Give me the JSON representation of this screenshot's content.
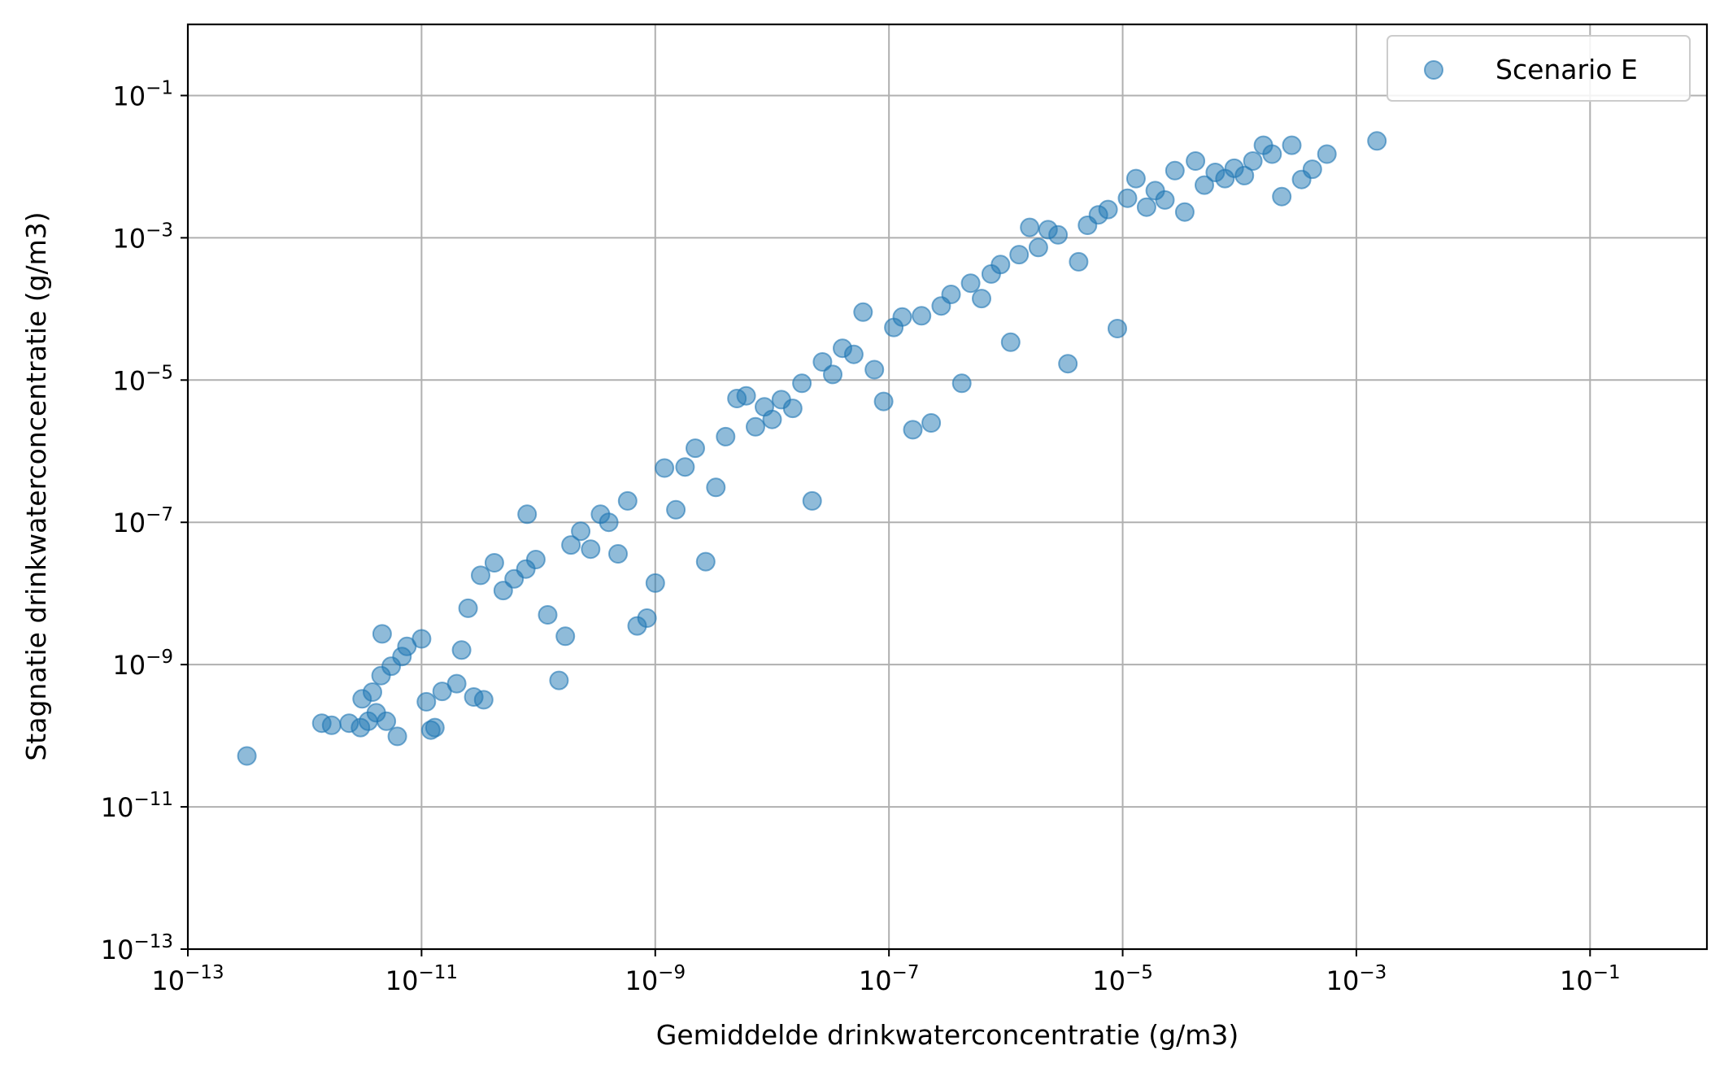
{
  "chart_data": {
    "type": "scatter",
    "title": "",
    "xlabel": "Gemiddelde drinkwaterconcentratie (g/m3)",
    "ylabel": "Stagnatie drinkwaterconcentratie (g/m3)",
    "x_scale": "log",
    "y_scale": "log",
    "xlim": [
      1e-13,
      1
    ],
    "ylim": [
      1e-13,
      1
    ],
    "x_ticks": [
      {
        "base": "10",
        "exp": "−13",
        "value": 1e-13
      },
      {
        "base": "10",
        "exp": "−11",
        "value": 1e-11
      },
      {
        "base": "10",
        "exp": "−9",
        "value": 1e-09
      },
      {
        "base": "10",
        "exp": "−7",
        "value": 1e-07
      },
      {
        "base": "10",
        "exp": "−5",
        "value": 1e-05
      },
      {
        "base": "10",
        "exp": "−3",
        "value": 0.001
      },
      {
        "base": "10",
        "exp": "−1",
        "value": 0.1
      }
    ],
    "y_ticks": [
      {
        "base": "10",
        "exp": "−13",
        "value": 1e-13
      },
      {
        "base": "10",
        "exp": "−11",
        "value": 1e-11
      },
      {
        "base": "10",
        "exp": "−9",
        "value": 1e-09
      },
      {
        "base": "10",
        "exp": "−7",
        "value": 1e-07
      },
      {
        "base": "10",
        "exp": "−5",
        "value": 1e-05
      },
      {
        "base": "10",
        "exp": "−3",
        "value": 0.001
      },
      {
        "base": "10",
        "exp": "−1",
        "value": 0.1
      }
    ],
    "grid": true,
    "legend_position": "top-right",
    "series": [
      {
        "name": "Scenario E",
        "color": "#1f77b4",
        "marker": "circle",
        "alpha": 0.5,
        "points": [
          [
            3.2e-13,
            5.2e-11
          ],
          [
            1.4e-12,
            1.5e-10
          ],
          [
            1.7e-12,
            1.4e-10
          ],
          [
            2.4e-12,
            1.5e-10
          ],
          [
            3e-12,
            1.3e-10
          ],
          [
            3.5e-12,
            1.6e-10
          ],
          [
            4.1e-12,
            2.1e-10
          ],
          [
            3.1e-12,
            3.3e-10
          ],
          [
            3.8e-12,
            4.1e-10
          ],
          [
            5e-12,
            1.6e-10
          ],
          [
            6.2e-12,
            9.8e-11
          ],
          [
            4.5e-12,
            7e-10
          ],
          [
            4.6e-12,
            2.7e-09
          ],
          [
            5.5e-12,
            9.5e-10
          ],
          [
            6.8e-12,
            1.3e-09
          ],
          [
            7.5e-12,
            1.8e-09
          ],
          [
            1e-11,
            2.3e-09
          ],
          [
            1.2e-11,
            1.2e-10
          ],
          [
            1.3e-11,
            1.3e-10
          ],
          [
            1.1e-11,
            3e-10
          ],
          [
            1.5e-11,
            4.2e-10
          ],
          [
            2e-11,
            5.4e-10
          ],
          [
            2.8e-11,
            3.5e-10
          ],
          [
            3.4e-11,
            3.2e-10
          ],
          [
            2.2e-11,
            1.6e-09
          ],
          [
            2.5e-11,
            6.2e-09
          ],
          [
            3.2e-11,
            1.8e-08
          ],
          [
            4.2e-11,
            2.7e-08
          ],
          [
            5e-11,
            1.1e-08
          ],
          [
            6.2e-11,
            1.6e-08
          ],
          [
            7.8e-11,
            2.2e-08
          ],
          [
            9.5e-11,
            3e-08
          ],
          [
            8e-11,
            1.3e-07
          ],
          [
            1.2e-10,
            5e-09
          ],
          [
            1.5e-10,
            6e-10
          ],
          [
            1.7e-10,
            2.5e-09
          ],
          [
            1.9e-10,
            4.8e-08
          ],
          [
            2.3e-10,
            7.5e-08
          ],
          [
            2.8e-10,
            4.2e-08
          ],
          [
            3.4e-10,
            1.3e-07
          ],
          [
            4e-10,
            1e-07
          ],
          [
            4.8e-10,
            3.6e-08
          ],
          [
            5.8e-10,
            2e-07
          ],
          [
            7e-10,
            3.5e-09
          ],
          [
            8.5e-10,
            4.5e-09
          ],
          [
            1e-09,
            1.4e-08
          ],
          [
            1.2e-09,
            5.8e-07
          ],
          [
            1.5e-09,
            1.5e-07
          ],
          [
            1.8e-09,
            6e-07
          ],
          [
            2.2e-09,
            1.1e-06
          ],
          [
            2.7e-09,
            2.8e-08
          ],
          [
            3.3e-09,
            3.1e-07
          ],
          [
            4e-09,
            1.6e-06
          ],
          [
            5e-09,
            5.5e-06
          ],
          [
            6e-09,
            6e-06
          ],
          [
            7.2e-09,
            2.2e-06
          ],
          [
            8.6e-09,
            4.2e-06
          ],
          [
            1e-08,
            2.8e-06
          ],
          [
            1.2e-08,
            5.3e-06
          ],
          [
            1.5e-08,
            4e-06
          ],
          [
            1.8e-08,
            9e-06
          ],
          [
            2.2e-08,
            2e-07
          ],
          [
            2.7e-08,
            1.8e-05
          ],
          [
            3.3e-08,
            1.2e-05
          ],
          [
            4e-08,
            2.8e-05
          ],
          [
            5e-08,
            2.3e-05
          ],
          [
            6e-08,
            9e-05
          ],
          [
            7.5e-08,
            1.4e-05
          ],
          [
            9e-08,
            5e-06
          ],
          [
            1.1e-07,
            5.5e-05
          ],
          [
            1.3e-07,
            7.7e-05
          ],
          [
            1.6e-07,
            2e-06
          ],
          [
            1.9e-07,
            8e-05
          ],
          [
            2.3e-07,
            2.5e-06
          ],
          [
            2.8e-07,
            0.00011
          ],
          [
            3.4e-07,
            0.00016
          ],
          [
            4.2e-07,
            9e-06
          ],
          [
            5e-07,
            0.00023
          ],
          [
            6.2e-07,
            0.00014
          ],
          [
            7.5e-07,
            0.00031
          ],
          [
            9e-07,
            0.00042
          ],
          [
            1.1e-06,
            3.4e-05
          ],
          [
            1.3e-06,
            0.00058
          ],
          [
            1.6e-06,
            0.0014
          ],
          [
            1.9e-06,
            0.00073
          ],
          [
            2.3e-06,
            0.0013
          ],
          [
            2.8e-06,
            0.0011
          ],
          [
            3.4e-06,
            1.7e-05
          ],
          [
            4.2e-06,
            0.00046
          ],
          [
            5e-06,
            0.0015
          ],
          [
            6.2e-06,
            0.0021
          ],
          [
            7.5e-06,
            0.0025
          ],
          [
            9e-06,
            5.3e-05
          ],
          [
            1.1e-05,
            0.0036
          ],
          [
            1.3e-05,
            0.0068
          ],
          [
            1.6e-05,
            0.0027
          ],
          [
            1.9e-05,
            0.0046
          ],
          [
            2.3e-05,
            0.0034
          ],
          [
            2.8e-05,
            0.0088
          ],
          [
            3.4e-05,
            0.0023
          ],
          [
            4.2e-05,
            0.012
          ],
          [
            5e-05,
            0.0055
          ],
          [
            6.2e-05,
            0.0083
          ],
          [
            7.5e-05,
            0.0068
          ],
          [
            9e-05,
            0.0095
          ],
          [
            0.00011,
            0.0075
          ],
          [
            0.00013,
            0.012
          ],
          [
            0.00016,
            0.02
          ],
          [
            0.00019,
            0.015
          ],
          [
            0.00023,
            0.0038
          ],
          [
            0.00028,
            0.02
          ],
          [
            0.00034,
            0.0066
          ],
          [
            0.00042,
            0.0092
          ],
          [
            0.00056,
            0.015
          ],
          [
            0.0015,
            0.023
          ]
        ]
      }
    ]
  }
}
